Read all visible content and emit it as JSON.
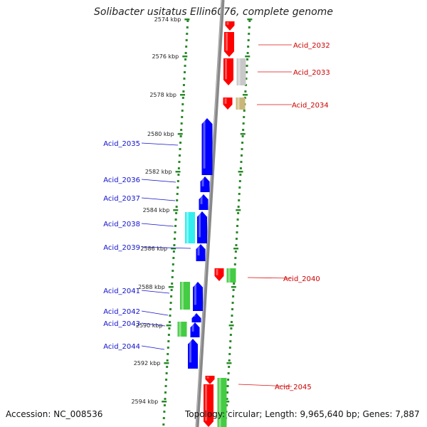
{
  "header": {
    "title": "Solibacter usitatus Ellin6076, complete genome"
  },
  "footer": {
    "accession": "Accession: NC_008536",
    "summary": "Topology: circular; Length: 9,965,640 bp; Genes: 7,887"
  },
  "colors": {
    "forward": "#ff0000",
    "reverse": "#0000ff",
    "green": "#44cc44",
    "cyan": "#33eeee",
    "gray": "#c8c8c8",
    "tan": "#c9b77a",
    "ring": "#888888",
    "dots": "#2a8a2a"
  },
  "ticks": [
    {
      "label": "2574 kbp",
      "y": 27
    },
    {
      "label": "2576 kbp",
      "y": 79
    },
    {
      "label": "2578 kbp",
      "y": 133
    },
    {
      "label": "2580 kbp",
      "y": 188
    },
    {
      "label": "2582 kbp",
      "y": 241
    },
    {
      "label": "2584 kbp",
      "y": 295
    },
    {
      "label": "2586 kbp",
      "y": 349
    },
    {
      "label": "2588 kbp",
      "y": 403
    },
    {
      "label": "2590 kbp",
      "y": 457
    },
    {
      "label": "2592 kbp",
      "y": 510
    },
    {
      "label": "2594 kbp",
      "y": 564
    }
  ],
  "genes_right": [
    {
      "name": "Acid_2032",
      "ly": 63
    },
    {
      "name": "Acid_2033",
      "ly": 101
    },
    {
      "name": "Acid_2034",
      "ly": 147
    },
    {
      "name": "Acid_2040",
      "ly": 391
    },
    {
      "name": "Acid_2045",
      "ly": 543
    }
  ],
  "genes_left": [
    {
      "name": "Acid_2035",
      "ly": 201
    },
    {
      "name": "Acid_2036",
      "ly": 252
    },
    {
      "name": "Acid_2037",
      "ly": 278
    },
    {
      "name": "Acid_2038",
      "ly": 314
    },
    {
      "name": "Acid_2039",
      "ly": 347
    },
    {
      "name": "Acid_2041",
      "ly": 408
    },
    {
      "name": "Acid_2042",
      "ly": 437
    },
    {
      "name": "Acid_2043",
      "ly": 454
    },
    {
      "name": "Acid_2044",
      "ly": 486
    }
  ]
}
